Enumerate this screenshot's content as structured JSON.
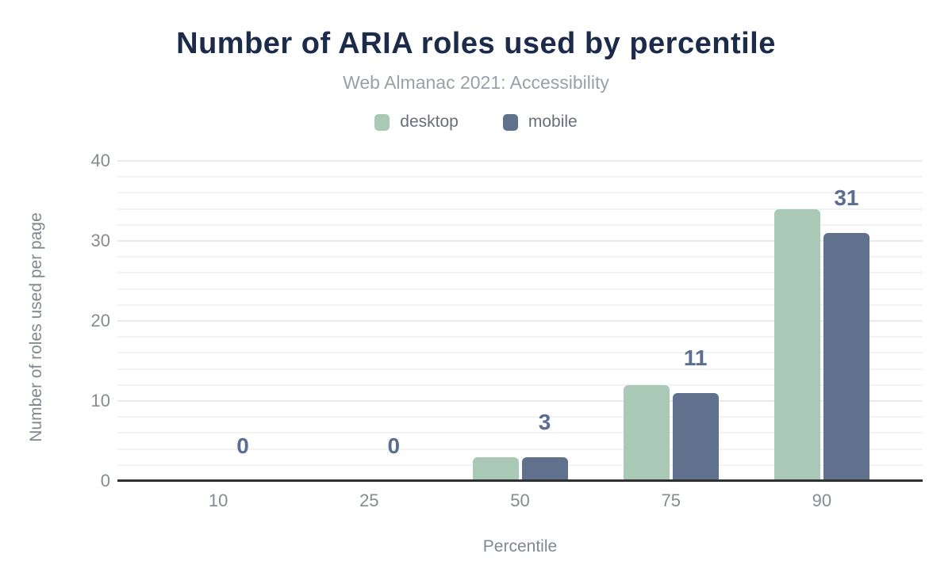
{
  "header": {
    "title": "Number of ARIA roles used by percentile",
    "subtitle": "Web Almanac 2021: Accessibility"
  },
  "legend": {
    "items": [
      {
        "label": "desktop",
        "color": "#a9c9b6"
      },
      {
        "label": "mobile",
        "color": "#5f718c"
      }
    ]
  },
  "chart_data": {
    "type": "bar",
    "title": "Number of ARIA roles used by percentile",
    "subtitle": "Web Almanac 2021: Accessibility",
    "categories": [
      "10",
      "25",
      "50",
      "75",
      "90"
    ],
    "series": [
      {
        "name": "desktop",
        "color": "#a9c9b6",
        "values": [
          0,
          0,
          3,
          12,
          34
        ]
      },
      {
        "name": "mobile",
        "color": "#5f718c",
        "values": [
          0,
          0,
          3,
          11,
          31
        ]
      }
    ],
    "data_labels": {
      "series": "mobile",
      "values": [
        "0",
        "0",
        "3",
        "11",
        "31"
      ]
    },
    "xlabel": "Percentile",
    "ylabel": "Number of roles used per page",
    "ylim": [
      0,
      40
    ],
    "yticks": [
      0,
      10,
      20,
      30,
      40
    ],
    "grid": {
      "minor_step": 2,
      "major_step": 10,
      "on": true
    },
    "legend_position": "top"
  },
  "colors": {
    "title": "#1c2b4a",
    "subtitle": "#9aa0a7",
    "axis_text": "#868b92",
    "axis_line": "#2f3133",
    "data_label": "#5b6e91",
    "grid_minor": "#f3f3f4",
    "grid_major": "#e9e9eb",
    "desktop": "#a9c9b6",
    "mobile": "#5f718c"
  }
}
